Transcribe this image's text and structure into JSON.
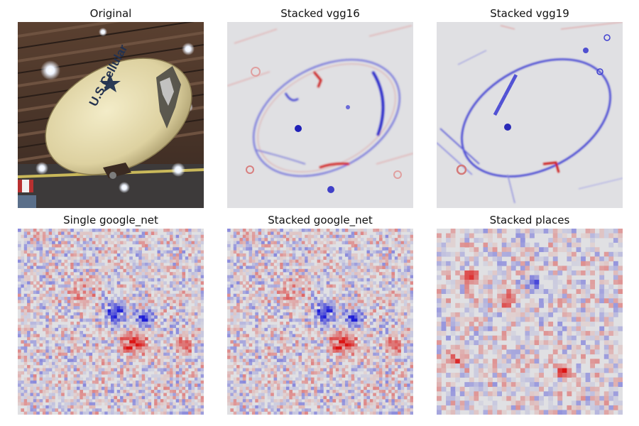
{
  "chart_data": {
    "type": "heatmap",
    "layout": "2x3 grid of images",
    "colormap": "bwr (blue = negative, white = zero, red = positive)",
    "panels": [
      {
        "title": "Original",
        "kind": "photo",
        "content": "Photograph of a blimp with text 'U.S.Cellular' floating under the roof of an arena"
      },
      {
        "title": "Stacked vgg16",
        "kind": "saliency",
        "content": "Blue and red edge-like attributions tracing the blimp outline and lettering"
      },
      {
        "title": "Stacked vgg19",
        "kind": "saliency",
        "content": "Mostly blue edge attributions tracing the blimp outline, lettering and roof beams"
      },
      {
        "title": "Single google_net",
        "kind": "saliency",
        "content": "Fine blocky red/blue noise pattern, concentrated red and blue near the center-bottom"
      },
      {
        "title": "Stacked google_net",
        "kind": "saliency",
        "content": "Fine blocky red/blue noise pattern nearly identical to the single google_net map"
      },
      {
        "title": "Stacked places",
        "kind": "saliency",
        "content": "Coarse blocky red/blue pattern, red clusters upper-left and lower-middle"
      }
    ]
  }
}
